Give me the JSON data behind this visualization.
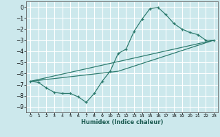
{
  "xlabel": "Humidex (Indice chaleur)",
  "bg_color": "#cce8ec",
  "grid_color": "#ffffff",
  "line_color": "#2d7b6e",
  "xlim": [
    -0.5,
    23.5
  ],
  "ylim": [
    -9.5,
    0.5
  ],
  "xticks": [
    0,
    1,
    2,
    3,
    4,
    5,
    6,
    7,
    8,
    9,
    10,
    11,
    12,
    13,
    14,
    15,
    16,
    17,
    18,
    19,
    20,
    21,
    22,
    23
  ],
  "yticks": [
    0,
    -1,
    -2,
    -3,
    -4,
    -5,
    -6,
    -7,
    -8,
    -9
  ],
  "series1_x": [
    0,
    1,
    2,
    3,
    4,
    5,
    6,
    7,
    8,
    9,
    10,
    11,
    12,
    13,
    14,
    15,
    16,
    17,
    18,
    19,
    20,
    21,
    22,
    23
  ],
  "series1_y": [
    -6.7,
    -6.8,
    -7.3,
    -7.7,
    -7.8,
    -7.8,
    -8.1,
    -8.6,
    -7.8,
    -6.7,
    -5.8,
    -4.2,
    -3.8,
    -2.2,
    -1.1,
    -0.15,
    -0.05,
    -0.7,
    -1.5,
    -2.0,
    -2.3,
    -2.5,
    -3.0,
    -3.0
  ],
  "series2_x": [
    0,
    23
  ],
  "series2_y": [
    -6.7,
    -3.0
  ],
  "series3_x": [
    0,
    11,
    23
  ],
  "series3_y": [
    -6.7,
    -5.8,
    -3.0
  ]
}
